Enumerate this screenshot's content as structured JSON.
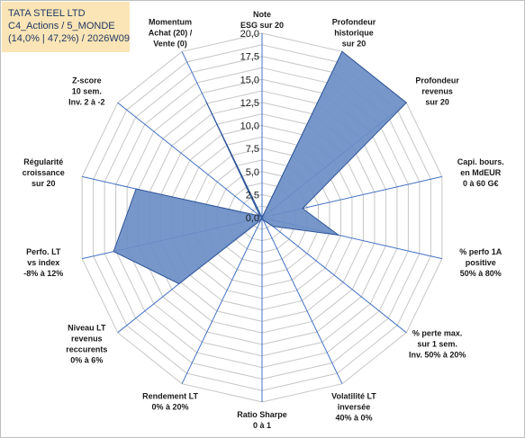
{
  "title_lines": [
    "TATA STEEL LTD",
    "C4_Actions / 5_MONDE",
    "(14,0% | 47,2%) / 2026W09"
  ],
  "colors": {
    "fill": "#6b8ec6",
    "stroke": "#2f5597",
    "grid": "#c6c6c6",
    "axis": "#4472c4",
    "title_bg": "#fbe5b6"
  },
  "chart_data": {
    "type": "radar",
    "rmin": 0,
    "rmax": 20,
    "ticks": [
      "0,0",
      "2,5",
      "5,0",
      "7,5",
      "10,0",
      "12,5",
      "15,0",
      "17,5",
      "20,0"
    ],
    "tick_values": [
      0,
      2.5,
      5,
      7.5,
      10,
      12.5,
      15,
      17.5,
      20
    ],
    "axes": [
      {
        "label": [
          "Note",
          "ESG sur 20"
        ],
        "value": 0
      },
      {
        "label": [
          "Profondeur",
          "historique",
          "sur 20"
        ],
        "value": 20
      },
      {
        "label": [
          "Profondeur",
          "revenus",
          "sur 20"
        ],
        "value": 20
      },
      {
        "label": [
          "Capi. bours.",
          "en MdEUR",
          "0 à 60 G€"
        ],
        "value": 4.5
      },
      {
        "label": [
          "% perfo 1A",
          "positive",
          "50% à 80%"
        ],
        "value": 8.5
      },
      {
        "label": [
          "% perte max.",
          "sur 1 sem.",
          "Inv. 50% à 20%"
        ],
        "value": 1.5
      },
      {
        "label": [
          "Volatilité LT",
          "inversée",
          "40% à 0%"
        ],
        "value": 0.3
      },
      {
        "label": [
          "Ratio Sharpe",
          "0 à 1"
        ],
        "value": 0
      },
      {
        "label": [
          "Rendement LT",
          "0% à 20%"
        ],
        "value": 0.3
      },
      {
        "label": [
          "Niveau LT",
          "revenus",
          "reccurents",
          "0% à 6%"
        ],
        "value": 11.5
      },
      {
        "label": [
          "Perfo. LT",
          "vs index",
          "-8% à 12%"
        ],
        "value": 16.5
      },
      {
        "label": [
          "Régularité",
          "croissance",
          "sur 20"
        ],
        "value": 14
      },
      {
        "label": [
          "Z-score",
          "10 sem.",
          "Inv. 2 à -2"
        ],
        "value": 0.3
      },
      {
        "label": [
          "Momentum",
          "Achat (20) /",
          "Vente (0)"
        ],
        "value": 14
      }
    ]
  }
}
